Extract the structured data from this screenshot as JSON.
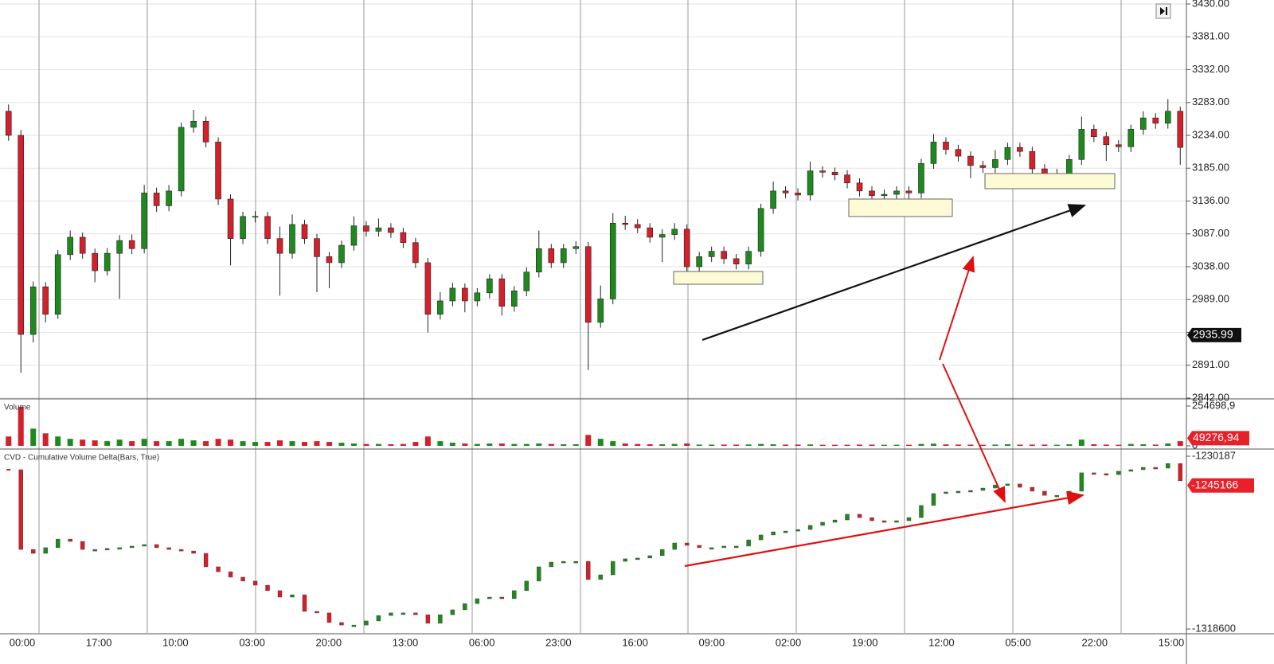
{
  "chart_data": [
    {
      "type": "candlestick",
      "open": [
        3270,
        3234,
        2937,
        3008,
        2967,
        3056,
        3082,
        3058,
        3032,
        3058,
        3077,
        3065,
        3148,
        3129,
        3151,
        3246,
        3255,
        3224,
        3139,
        3080,
        3113,
        3113,
        3080,
        3058,
        3101,
        3080,
        3053,
        3044,
        3070,
        3099,
        3091,
        3096,
        3089,
        3074,
        3044,
        2967,
        2987,
        3006,
        2987,
        2999,
        3020,
        2979,
        3002,
        3030,
        3065,
        3044,
        3065,
        3068,
        2955,
        2990,
        3103,
        3101,
        3096,
        3082,
        3086,
        3094,
        3038,
        3053,
        3061,
        3050,
        3042,
        3061,
        3125,
        3151,
        3148,
        3145,
        3181,
        3179,
        3175,
        3163,
        3151,
        3144,
        3146,
        3151,
        3148,
        3192,
        3224,
        3213,
        3203,
        3189,
        3186,
        3198,
        3216,
        3210,
        3184,
        3172,
        3177,
        3198,
        3243,
        3232,
        3220,
        3217,
        3243,
        3260,
        3252,
        3270
      ],
      "high": [
        3280,
        3242,
        3016,
        3015,
        3063,
        3092,
        3089,
        3065,
        3066,
        3085,
        3086,
        3160,
        3156,
        3160,
        3253,
        3272,
        3262,
        3231,
        3146,
        3120,
        3121,
        3120,
        3098,
        3116,
        3108,
        3087,
        3060,
        3077,
        3113,
        3106,
        3110,
        3103,
        3096,
        3081,
        3051,
        3000,
        3014,
        3013,
        3006,
        3027,
        3027,
        3009,
        3037,
        3092,
        3072,
        3072,
        3076,
        3075,
        3010,
        3118,
        3114,
        3109,
        3103,
        3094,
        3103,
        3101,
        3060,
        3068,
        3068,
        3057,
        3068,
        3132,
        3165,
        3158,
        3155,
        3195,
        3188,
        3186,
        3182,
        3170,
        3158,
        3153,
        3158,
        3158,
        3199,
        3236,
        3231,
        3220,
        3210,
        3196,
        3212,
        3223,
        3223,
        3217,
        3191,
        3184,
        3205,
        3262,
        3250,
        3239,
        3227,
        3250,
        3270,
        3267,
        3288,
        3277
      ],
      "low": [
        3226,
        2880,
        2925,
        2955,
        2960,
        3048,
        3050,
        3015,
        3025,
        2990,
        3057,
        3058,
        3120,
        3121,
        3143,
        3238,
        3216,
        3130,
        3040,
        3072,
        3104,
        3072,
        2995,
        3050,
        3072,
        3000,
        3006,
        3036,
        3062,
        3083,
        3083,
        3081,
        3066,
        3036,
        2940,
        2959,
        2979,
        2970,
        2979,
        2991,
        2965,
        2971,
        2994,
        3022,
        3036,
        3036,
        3057,
        2884,
        2947,
        2982,
        3093,
        3088,
        3074,
        3045,
        3078,
        3025,
        3030,
        3045,
        3042,
        3034,
        3034,
        3053,
        3117,
        3140,
        3137,
        3137,
        3171,
        3167,
        3155,
        3143,
        3125,
        3136,
        3138,
        3135,
        3140,
        3184,
        3205,
        3195,
        3170,
        3178,
        3178,
        3190,
        3202,
        3176,
        3160,
        3164,
        3169,
        3190,
        3224,
        3196,
        3209,
        3209,
        3235,
        3244,
        3244,
        3190
      ],
      "close": [
        3234,
        2937,
        3008,
        2967,
        3056,
        3082,
        3058,
        3032,
        3058,
        3077,
        3065,
        3148,
        3129,
        3151,
        3246,
        3255,
        3224,
        3139,
        3080,
        3113,
        3113,
        3080,
        3058,
        3101,
        3080,
        3053,
        3044,
        3070,
        3099,
        3091,
        3096,
        3089,
        3074,
        3044,
        2967,
        2987,
        3006,
        2987,
        2999,
        3020,
        2979,
        3002,
        3030,
        3065,
        3044,
        3065,
        3068,
        2955,
        2990,
        3103,
        3101,
        3096,
        3082,
        3086,
        3094,
        3038,
        3053,
        3061,
        3050,
        3042,
        3061,
        3125,
        3151,
        3148,
        3145,
        3181,
        3179,
        3175,
        3163,
        3151,
        3144,
        3146,
        3151,
        3148,
        3192,
        3224,
        3213,
        3203,
        3189,
        3186,
        3198,
        3216,
        3210,
        3184,
        3172,
        3177,
        3198,
        3243,
        3232,
        3220,
        3217,
        3243,
        3260,
        3252,
        3270,
        3216
      ],
      "ylim": [
        2842,
        3430
      ],
      "yticks": [
        {
          "value": 3430,
          "label": "3430.00"
        },
        {
          "value": 3381,
          "label": "3381.00"
        },
        {
          "value": 3332,
          "label": "3332.00"
        },
        {
          "value": 3283,
          "label": "3283.00"
        },
        {
          "value": 3234,
          "label": "3234.00"
        },
        {
          "value": 3185,
          "label": "3185.00"
        },
        {
          "value": 3136,
          "label": "3136.00"
        },
        {
          "value": 3087,
          "label": "3087.00"
        },
        {
          "value": 3038,
          "label": "3038.00"
        },
        {
          "value": 2989,
          "label": "2989.00"
        },
        {
          "value": 2940,
          "label": "2940.00"
        },
        {
          "value": 2891,
          "label": "2891.00"
        },
        {
          "value": 2842,
          "label": "2842.00"
        }
      ],
      "up_color": "#1e8a1e",
      "down_color": "#d3202a",
      "grid": true,
      "last_price": 2935.99,
      "x_labels": [
        "00:00",
        "17:00",
        "10:00",
        "03:00",
        "20:00",
        "13:00",
        "06:00",
        "23:00",
        "16:00",
        "09:00",
        "02:00",
        "19:00",
        "12:00",
        "05:00",
        "22:00",
        "15:00"
      ]
    },
    {
      "type": "bar",
      "title": "Volume",
      "values": [
        60000,
        250000,
        110000,
        80000,
        60000,
        45000,
        40000,
        35000,
        30000,
        40000,
        30000,
        45000,
        30000,
        30000,
        45000,
        35000,
        30000,
        45000,
        40000,
        30000,
        25000,
        25000,
        35000,
        30000,
        25000,
        30000,
        25000,
        20000,
        15000,
        12000,
        12000,
        10000,
        12000,
        25000,
        60000,
        30000,
        20000,
        15000,
        12000,
        15000,
        15000,
        12000,
        12000,
        15000,
        12000,
        10000,
        10000,
        70000,
        45000,
        30000,
        15000,
        12000,
        10000,
        10000,
        12000,
        15000,
        8000,
        8000,
        8000,
        8000,
        9000,
        12000,
        10000,
        8000,
        8000,
        9000,
        7000,
        7000,
        7000,
        8000,
        8000,
        7000,
        7000,
        7000,
        12000,
        14000,
        9000,
        8000,
        8000,
        7000,
        8000,
        10000,
        8000,
        8000,
        8000,
        7000,
        10000,
        40000,
        10000,
        8000,
        7000,
        12000,
        10000,
        8000,
        15000,
        30000
      ],
      "ylim": [
        0,
        254698.9
      ],
      "yticks": [
        {
          "value": 254698.9,
          "label": "254698,9"
        },
        0
      ],
      "last_value": {
        "value": 49276.94,
        "label": "49276,94"
      }
    },
    {
      "type": "cvd",
      "title": "CVD - Cumulative Volume Delta(Bars, True)",
      "values": [
        -1237100,
        -1277900,
        -1279900,
        -1277000,
        -1272600,
        -1273800,
        -1277900,
        -1277900,
        -1277400,
        -1277000,
        -1276200,
        -1275400,
        -1277000,
        -1277900,
        -1278700,
        -1279900,
        -1286800,
        -1289300,
        -1292100,
        -1294100,
        -1296200,
        -1299000,
        -1302300,
        -1301100,
        -1309600,
        -1310400,
        -1315300,
        -1316600,
        -1316600,
        -1314500,
        -1311700,
        -1310400,
        -1310400,
        -1311300,
        -1315700,
        -1311300,
        -1308800,
        -1305600,
        -1303100,
        -1302300,
        -1303100,
        -1299000,
        -1294100,
        -1286800,
        -1284400,
        -1284000,
        -1284000,
        -1293300,
        -1290900,
        -1284000,
        -1282700,
        -1282300,
        -1281100,
        -1277900,
        -1274600,
        -1275800,
        -1277000,
        -1277000,
        -1276200,
        -1276200,
        -1273000,
        -1270500,
        -1268900,
        -1268500,
        -1267700,
        -1265600,
        -1264000,
        -1262800,
        -1259900,
        -1261600,
        -1263200,
        -1263600,
        -1263200,
        -1261600,
        -1255400,
        -1249300,
        -1248500,
        -1248100,
        -1247700,
        -1246500,
        -1244900,
        -1244400,
        -1246100,
        -1248100,
        -1250200,
        -1250200,
        -1248100,
        -1238700,
        -1239100,
        -1239600,
        -1237900,
        -1237100,
        -1235900,
        -1236300,
        -1233900,
        -1242800
      ],
      "ylim": [
        -1318600,
        -1230187
      ],
      "yticks": [
        -1230187,
        -1318600
      ],
      "last_value": -1245166
    }
  ]
}
